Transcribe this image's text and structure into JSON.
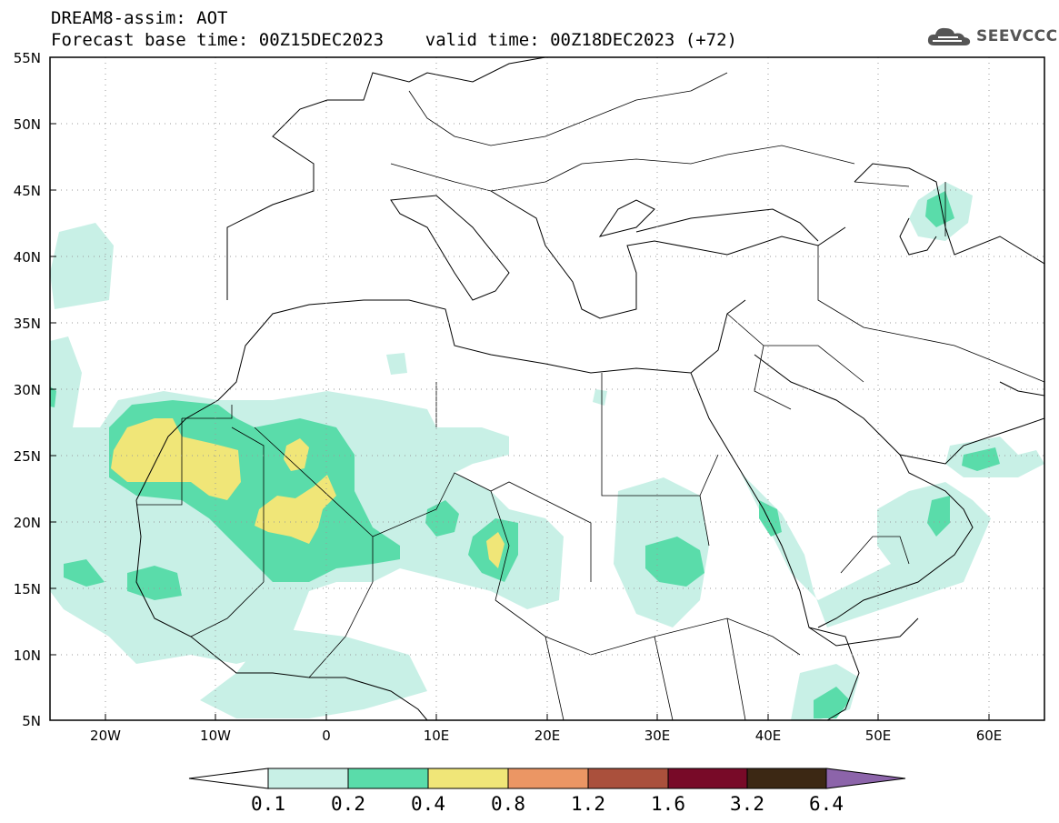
{
  "header": {
    "line1": "DREAM8-assim: AOT",
    "line2": "Forecast base time: 00Z15DEC2023    valid time: 00Z18DEC2023 (+72)"
  },
  "logo": {
    "text": "SEEVCCC",
    "icon": "cloud-icon"
  },
  "map": {
    "lat_range": [
      5,
      55
    ],
    "lon_range": [
      -25,
      65
    ],
    "grid": true,
    "lat_labels": [
      "55N",
      "50N",
      "45N",
      "40N",
      "35N",
      "30N",
      "25N",
      "20N",
      "15N",
      "10N",
      "5N"
    ],
    "lon_labels": [
      "20W",
      "10W",
      "0",
      "10E",
      "20E",
      "30E",
      "40E",
      "50E",
      "60E"
    ]
  },
  "colorbar": {
    "labels": [
      "0.1",
      "0.2",
      "0.4",
      "0.8",
      "1.2",
      "1.6",
      "3.2",
      "6.4"
    ],
    "colors": [
      "#ffffff",
      "#c8f0e6",
      "#5adcaa",
      "#f0e678",
      "#eb9664",
      "#aa503c",
      "#780a28",
      "#3c2814",
      "#8c64aa"
    ]
  }
}
